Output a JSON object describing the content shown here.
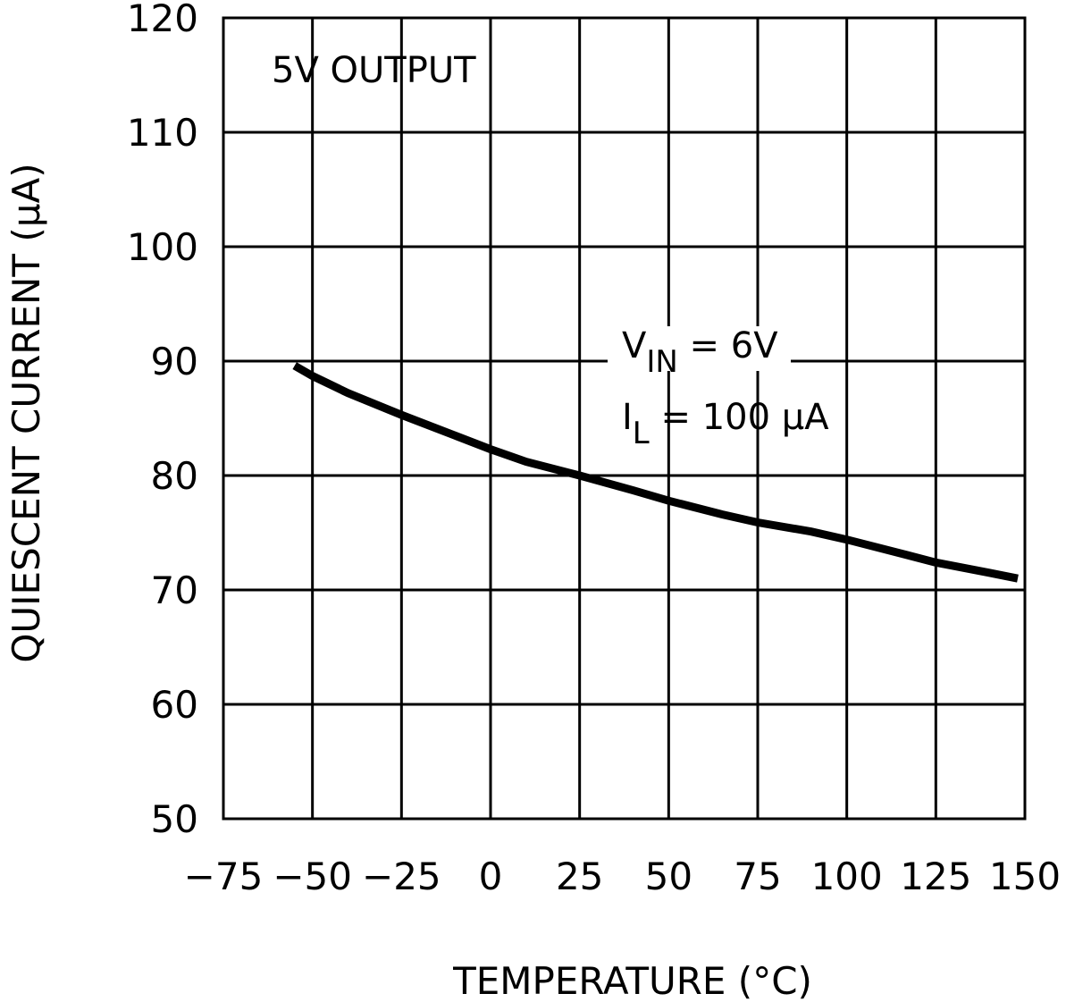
{
  "chart_data": {
    "type": "line",
    "title": "",
    "xlabel": "TEMPERATURE (°C)",
    "ylabel": "QUIESCENT CURRENT (μA)",
    "xlim": [
      -75,
      150
    ],
    "ylim": [
      50,
      120
    ],
    "xticks": [
      -75,
      -50,
      -25,
      0,
      25,
      50,
      75,
      100,
      125,
      150
    ],
    "yticks": [
      50,
      60,
      70,
      80,
      90,
      100,
      110,
      120
    ],
    "xtick_labels": [
      "−75",
      "−50",
      "−25",
      "0",
      "25",
      "50",
      "75",
      "100",
      "125",
      "150"
    ],
    "ytick_labels": [
      "50",
      "60",
      "70",
      "80",
      "90",
      "100",
      "110",
      "120"
    ],
    "grid": true,
    "annotations": {
      "output": "5V OUTPUT",
      "vin_main": "V",
      "vin_sub": "IN",
      "vin_value": " = 6V",
      "il_main": "I",
      "il_sub": "L",
      "il_value": " = 100 μA"
    },
    "series": [
      {
        "name": "VIN = 6V, IL = 100 μA",
        "x": [
          -55,
          -50,
          -40,
          -25,
          -10,
          0,
          10,
          25,
          40,
          50,
          65,
          75,
          90,
          100,
          115,
          125,
          140,
          148
        ],
        "y": [
          89.6,
          88.7,
          87.2,
          85.3,
          83.5,
          82.3,
          81.2,
          80.0,
          78.7,
          77.8,
          76.6,
          75.9,
          75.1,
          74.4,
          73.2,
          72.4,
          71.5,
          71.0
        ]
      }
    ]
  }
}
